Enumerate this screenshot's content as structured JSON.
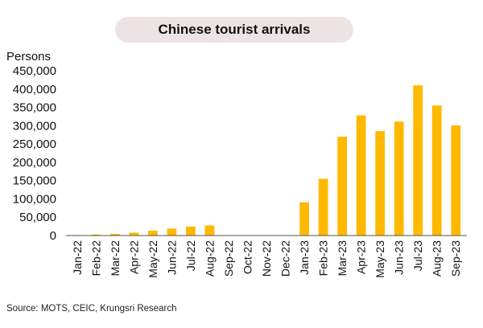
{
  "chart_data": {
    "type": "bar",
    "title": "Chinese tourist arrivals",
    "ylabel": "Persons",
    "xlabel": "",
    "ylim": [
      0,
      450000
    ],
    "yticks": [
      "0",
      "50,000",
      "100,000",
      "150,000",
      "200,000",
      "250,000",
      "300,000",
      "350,000",
      "400,000",
      "450,000"
    ],
    "categories": [
      "Jan-22",
      "Feb-22",
      "Mar-22",
      "Apr-22",
      "May-22",
      "Jun-22",
      "Jul-22",
      "Aug-22",
      "Sep-22",
      "Oct-22",
      "Nov-22",
      "Dec-22",
      "Jan-23",
      "Feb-23",
      "Mar-23",
      "Apr-23",
      "May-23",
      "Jun-23",
      "Jul-23",
      "Aug-23",
      "Sep-23"
    ],
    "values": [
      1500,
      3000,
      4500,
      8000,
      13500,
      19000,
      24500,
      27500,
      0,
      0,
      0,
      0,
      91000,
      155000,
      270000,
      328000,
      285000,
      311000,
      410000,
      355000,
      301000
    ],
    "bar_color": "#ffb900",
    "grid": false,
    "source": "Source: MOTS, CEIC, Krungsri Research"
  }
}
